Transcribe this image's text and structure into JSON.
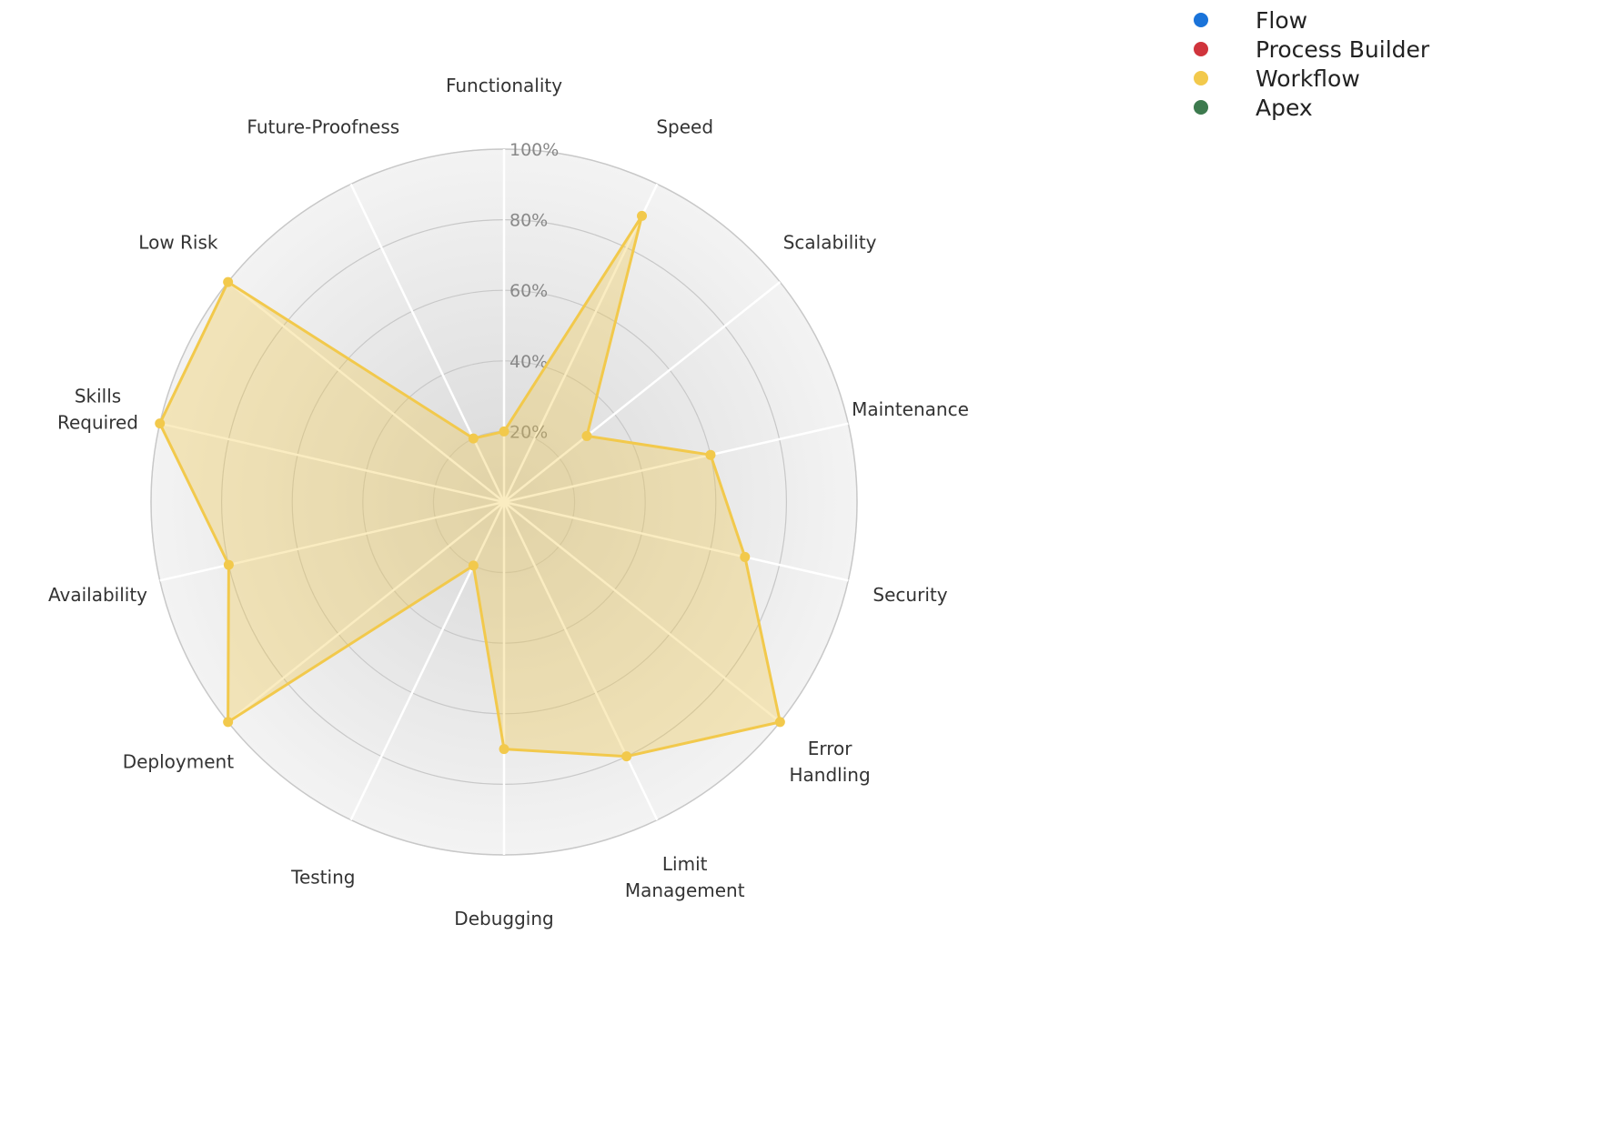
{
  "chart_data": {
    "type": "radar",
    "title": "",
    "axes": [
      "Functionality",
      "Speed",
      "Scalability",
      "Maintenance",
      "Security",
      "Error Handling",
      "Limit Management",
      "Debugging",
      "Testing",
      "Deployment",
      "Availability",
      "Skills Required",
      "Low Risk",
      "Future-Proofness"
    ],
    "axis_display": [
      [
        "Functionality"
      ],
      [
        "Speed"
      ],
      [
        "Scalability"
      ],
      [
        "Maintenance"
      ],
      [
        "Security"
      ],
      [
        "Error",
        "Handling"
      ],
      [
        "Limit",
        "Management"
      ],
      [
        "Debugging"
      ],
      [
        "Testing"
      ],
      [
        "Deployment"
      ],
      [
        "Availability"
      ],
      [
        "Skills",
        "Required"
      ],
      [
        "Low Risk"
      ],
      [
        "Future-Proofness"
      ]
    ],
    "ticks": [
      20,
      40,
      60,
      80,
      100
    ],
    "tick_labels": [
      "20%",
      "40%",
      "60%",
      "80%",
      "100%"
    ],
    "rlim": [
      0,
      100
    ],
    "grid": true,
    "legend_position": "top-right",
    "series": [
      {
        "name": "Flow",
        "color": "#1a73d9",
        "values": null
      },
      {
        "name": "Process Builder",
        "color": "#d0343c",
        "values": null
      },
      {
        "name": "Workflow",
        "color": "#f2c94c",
        "values": [
          20,
          90,
          30,
          60,
          70,
          100,
          80,
          70,
          20,
          100,
          80,
          100,
          100,
          20
        ]
      },
      {
        "name": "Apex",
        "color": "#3d7a4e",
        "values": null
      }
    ]
  }
}
